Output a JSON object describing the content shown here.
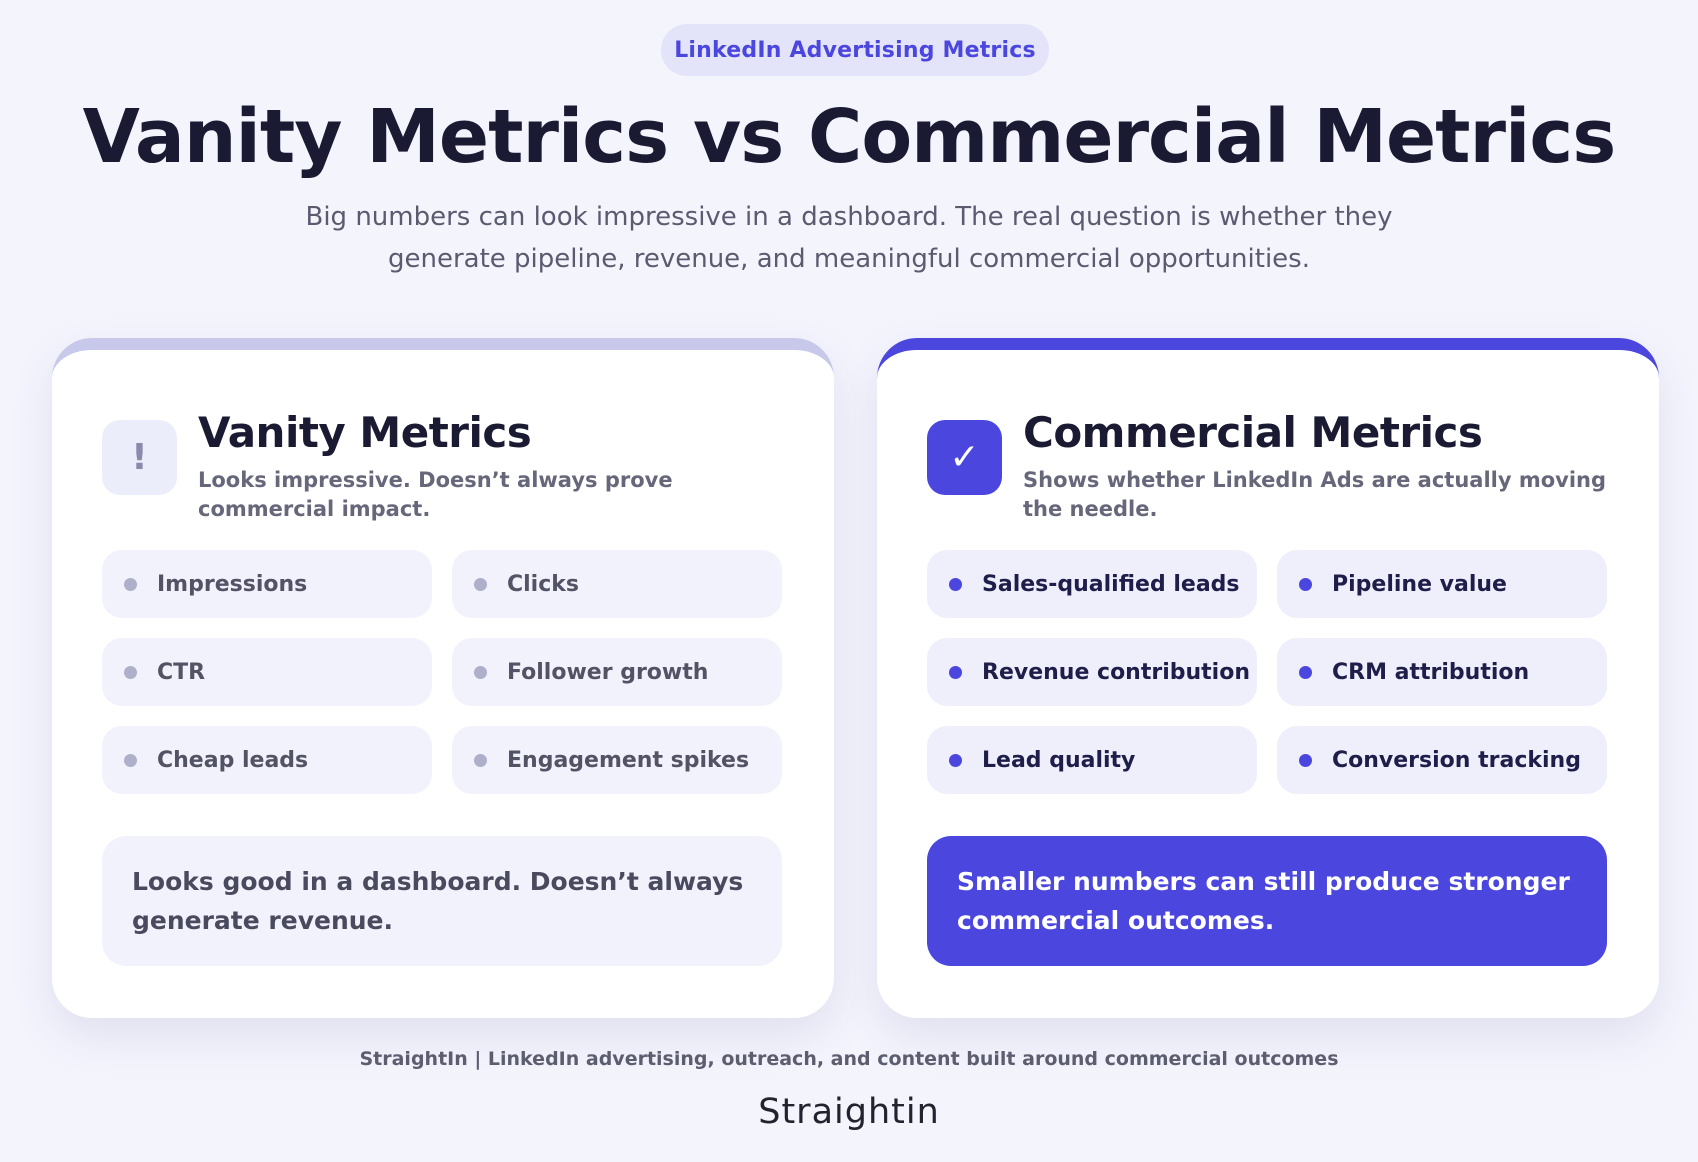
{
  "pill": "LinkedIn Advertising Metrics",
  "title": "Vanity Metrics vs Commercial Metrics",
  "subtitle": "Big numbers can look impressive in a dashboard. The real question is whether they generate pipeline, revenue, and meaningful commercial opportunities.",
  "vanity": {
    "icon": "exclamation-icon",
    "icon_glyph": "!",
    "title": "Vanity Metrics",
    "description": "Looks impressive. Doesn’t always prove commercial impact.",
    "items": [
      "Impressions",
      "Clicks",
      "CTR",
      "Follower growth",
      "Cheap leads",
      "Engagement spikes"
    ],
    "note": "Looks good in a dashboard. Doesn’t always generate revenue.",
    "accent": "#c7c8ea"
  },
  "commercial": {
    "icon": "checkmark-icon",
    "icon_glyph": "✓",
    "title": "Commercial Metrics",
    "description": "Shows whether LinkedIn Ads are actually moving the needle.",
    "items": [
      "Sales-qualified leads",
      "Pipeline value",
      "Revenue contribution",
      "CRM attribution",
      "Lead quality",
      "Conversion tracking"
    ],
    "note": "Smaller numbers can still produce stronger commercial outcomes.",
    "accent": "#4b47de"
  },
  "footer": "StraightIn | LinkedIn advertising, outreach, and content built around commercial outcomes",
  "logo": "Straightin"
}
